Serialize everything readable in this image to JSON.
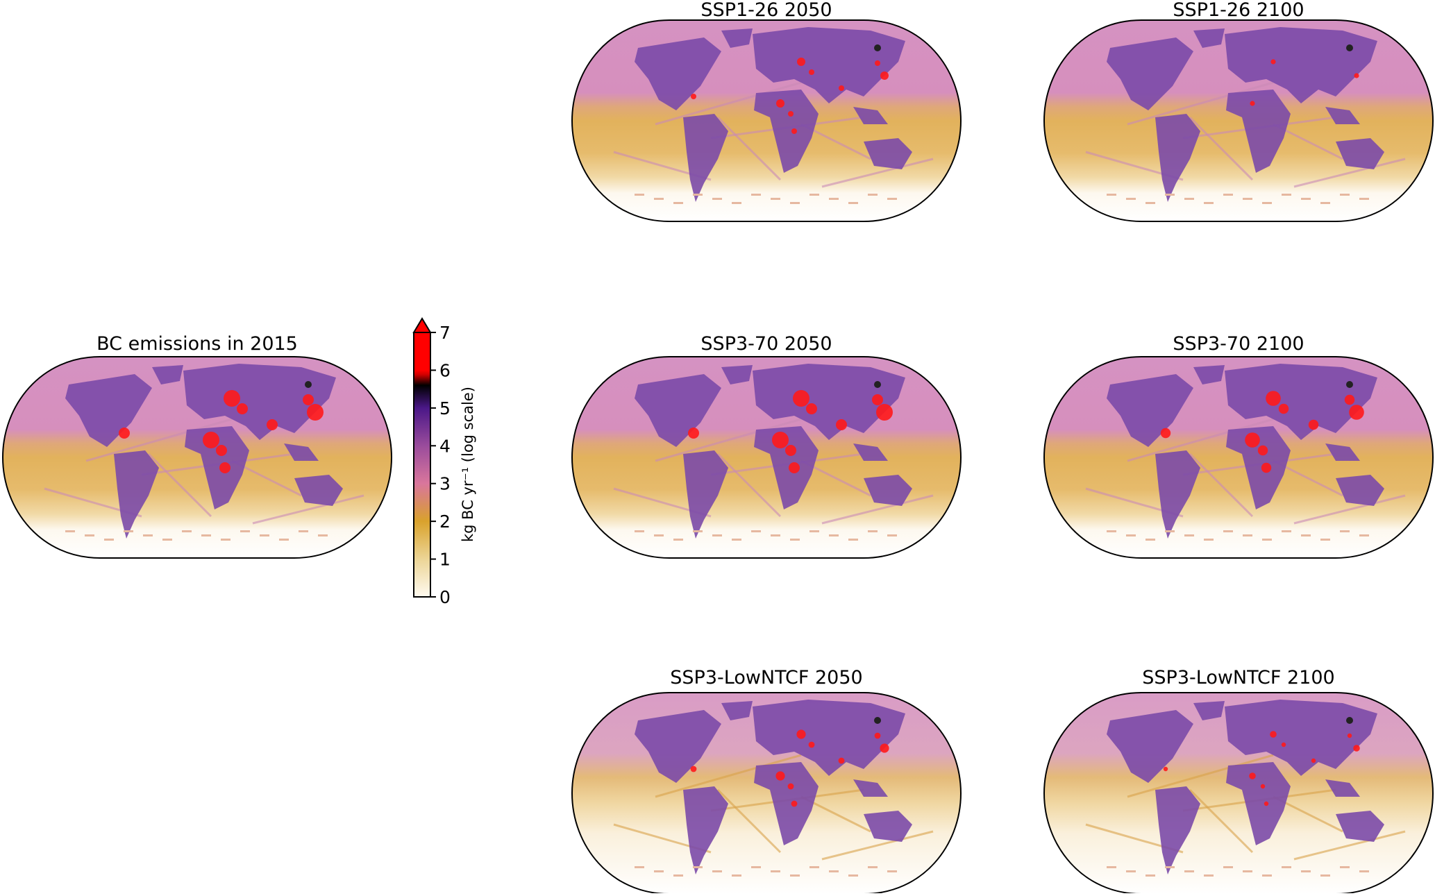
{
  "panels": [
    {
      "title": "BC emissions in 2015"
    },
    {
      "title": "SSP1-26 2050"
    },
    {
      "title": "SSP1-26 2100"
    },
    {
      "title": "SSP3-70 2050"
    },
    {
      "title": "SSP3-70 2100"
    },
    {
      "title": "SSP3-LowNTCF 2050"
    },
    {
      "title": "SSP3-LowNTCF 2100"
    }
  ],
  "colorbar": {
    "label": "kg BC yr⁻¹ (log scale)",
    "ticks": [
      "0",
      "1",
      "2",
      "3",
      "4",
      "5",
      "6",
      "7"
    ],
    "range": [
      0,
      7
    ],
    "extend": "max",
    "colors": {
      "c0": "#fffaf0",
      "c1": "#ecd596",
      "c2": "#d9a22c",
      "c3": "#d9769c",
      "c4": "#9a4c9c",
      "c5": "#4b1888",
      "c55": "#000000",
      "c6": "#ff0000"
    }
  }
}
